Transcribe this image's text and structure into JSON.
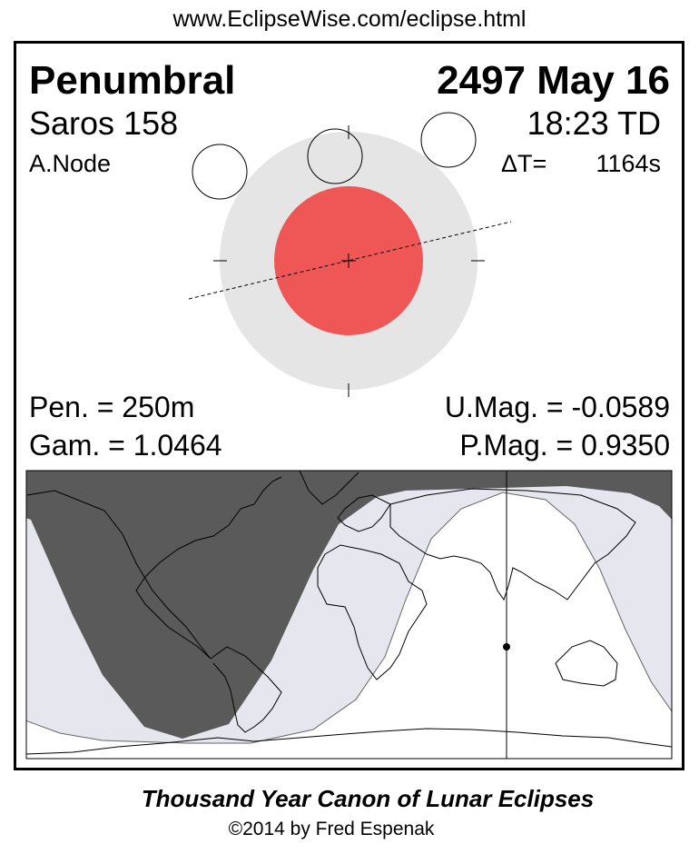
{
  "header": {
    "url": "www.EclipseWise.com/eclipse.html"
  },
  "eclipse": {
    "type": "Penumbral",
    "date": "2497 May 16",
    "saros": "Saros 158",
    "time": "18:23 TD",
    "node": "A.Node",
    "delta_t_label": "ΔT=",
    "delta_t_value": "1164s",
    "pen_duration": "Pen. = 250m",
    "gamma": "Gam. = 1.0464",
    "umbral_mag": "U.Mag. = -0.0589",
    "penumbral_mag": "P.Mag. = 0.9350"
  },
  "colors": {
    "penumbra": "#e5e5e5",
    "umbra": "#ef5656",
    "map_night": "#5a5a5a",
    "map_penumbral_visible": "#e6e6ee",
    "map_day": "#ffffff"
  },
  "footer": {
    "title": "Thousand Year Canon of Lunar Eclipses",
    "copyright": "©2014 by Fred Espenak"
  }
}
